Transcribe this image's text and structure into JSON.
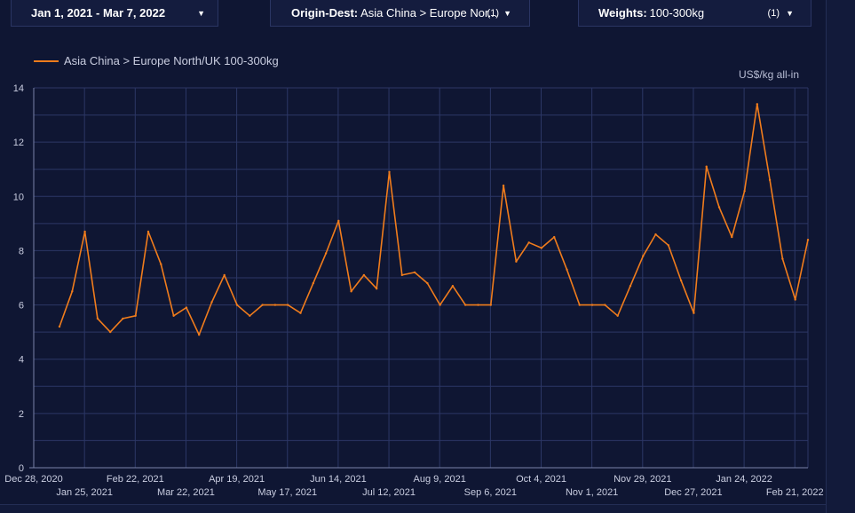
{
  "filters": {
    "date_range": "Jan 1, 2021 - Mar 7, 2022",
    "origin_label": "Origin-Dest:",
    "origin_value": "Asia China > Europe Nor...",
    "origin_count": "(1)",
    "weights_label": "Weights:",
    "weights_value": "100-300kg",
    "weights_count": "(1)",
    "caret_icon": "caret-down-icon"
  },
  "colors": {
    "line": "#f07c1c",
    "background": "#0f1633",
    "grid": "#2c3766"
  },
  "chart_data": {
    "type": "line",
    "unit_label": "US$/kg all-in",
    "grid": true,
    "legend_position": "top-left",
    "ylim": [
      0,
      14
    ],
    "y_ticks": [
      "0",
      "2",
      "4",
      "6",
      "8",
      "10",
      "12",
      "14"
    ],
    "x_ticks_top": [
      "Dec 28, 2020",
      "Feb 22, 2021",
      "Apr 19, 2021",
      "Jun 14, 2021",
      "Aug 9, 2021",
      "Oct 4, 2021",
      "Nov 29, 2021",
      "Jan 24, 2022"
    ],
    "x_ticks_bottom": [
      "Jan 25, 2021",
      "Mar 22, 2021",
      "May 17, 2021",
      "Jul 12, 2021",
      "Sep 6, 2021",
      "Nov 1, 2021",
      "Dec 27, 2021",
      "Feb 21, 2022"
    ],
    "series": [
      {
        "name": "Asia China > Europe North/UK 100-300kg",
        "values": [
          5.2,
          6.5,
          8.7,
          5.5,
          5.0,
          5.5,
          5.6,
          8.7,
          7.5,
          5.6,
          5.9,
          4.9,
          6.1,
          7.1,
          6.0,
          5.6,
          6.0,
          6.0,
          6.0,
          5.7,
          6.8,
          7.9,
          9.1,
          6.5,
          7.1,
          6.6,
          10.9,
          7.1,
          7.2,
          6.8,
          6.0,
          6.7,
          6.0,
          6.0,
          6.0,
          10.4,
          7.6,
          8.3,
          8.1,
          8.5,
          7.3,
          6.0,
          6.0,
          6.0,
          5.6,
          6.7,
          7.8,
          8.6,
          8.2,
          6.9,
          5.7,
          11.1,
          9.6,
          8.5,
          10.2,
          13.4,
          10.6,
          7.7,
          6.2,
          8.4
        ]
      }
    ]
  }
}
